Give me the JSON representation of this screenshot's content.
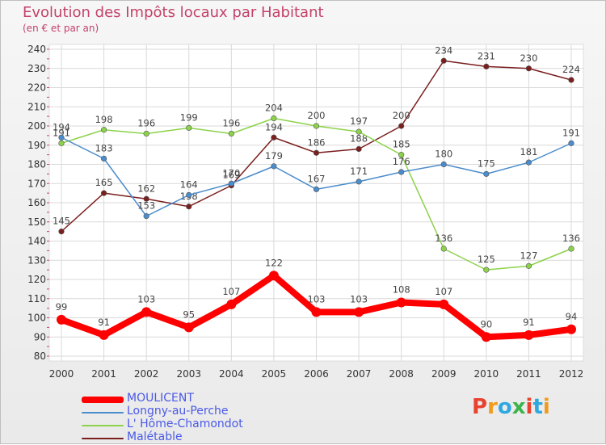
{
  "colors": {
    "title": "#c3426b",
    "legend_text": "#4a59e8",
    "grid": "#d9d9d9",
    "brand": [
      "#e8422f",
      "#f29a1a",
      "#2fa8e0",
      "#3ab54a",
      "#e8422f",
      "#f29a1a"
    ]
  },
  "brand": {
    "letters": [
      "P",
      "r",
      "o",
      "x",
      "i",
      "t",
      "i"
    ]
  },
  "chart_data": {
    "type": "line",
    "title": "Evolution des Impôts locaux par Habitant",
    "subtitle": "(en € et par an)",
    "xlabel": "",
    "ylabel": "",
    "ylim": [
      80,
      240
    ],
    "yticks": [
      80,
      90,
      100,
      110,
      120,
      130,
      140,
      150,
      160,
      170,
      180,
      190,
      200,
      210,
      220,
      230,
      240
    ],
    "categories": [
      "2000",
      "2001",
      "2002",
      "2003",
      "2004",
      "2005",
      "2006",
      "2007",
      "2008",
      "2009",
      "2010",
      "2011",
      "2012"
    ],
    "grid": true,
    "legend_position": "bottom-left",
    "series": [
      {
        "name": "MOULICENT",
        "color": "#ff0000",
        "values": [
          99,
          91,
          103,
          95,
          107,
          122,
          103,
          103,
          108,
          107,
          90,
          91,
          94
        ],
        "labels": [
          "99",
          "91",
          "103",
          "95",
          "107",
          "122",
          "103",
          "103",
          "108",
          "107",
          "90",
          "91",
          "94"
        ]
      },
      {
        "name": "Longny-au-Perche",
        "color": "#4a8ccc",
        "values": [
          194,
          183,
          153,
          164,
          170,
          179,
          167,
          171,
          176,
          180,
          175,
          181,
          191
        ],
        "labels": [
          "194",
          "183",
          "153",
          "164",
          "170",
          "179",
          "167",
          "171",
          "176",
          "180",
          "175",
          "181",
          "191"
        ]
      },
      {
        "name": "L' Hôme-Chamondot",
        "color": "#8cd24a",
        "values": [
          191,
          198,
          196,
          199,
          196,
          204,
          200,
          197,
          185,
          136,
          125,
          127,
          136
        ],
        "labels": [
          "191",
          "198",
          "196",
          "199",
          "196",
          "204",
          "200",
          "197",
          "185",
          "136",
          "125",
          "127",
          "136"
        ]
      },
      {
        "name": "Malétable",
        "color": "#7a1e1e",
        "values": [
          145,
          165,
          162,
          158,
          169,
          194,
          186,
          188,
          200,
          234,
          231,
          230,
          224
        ],
        "labels": [
          "145",
          "165",
          "162",
          "158",
          "169",
          "194",
          "186",
          "188",
          "200",
          "234",
          "231",
          "230",
          "224"
        ]
      }
    ]
  }
}
